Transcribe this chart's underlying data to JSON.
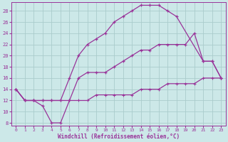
{
  "xlabel": "Windchill (Refroidissement éolien,°C)",
  "bg_color": "#cce8e8",
  "line_color": "#993399",
  "grid_color": "#aacccc",
  "xlim": [
    -0.5,
    23.5
  ],
  "ylim": [
    7.5,
    29.5
  ],
  "xticks": [
    0,
    1,
    2,
    3,
    4,
    5,
    6,
    7,
    8,
    9,
    10,
    11,
    12,
    13,
    14,
    15,
    16,
    17,
    18,
    19,
    20,
    21,
    22,
    23
  ],
  "yticks": [
    8,
    10,
    12,
    14,
    16,
    18,
    20,
    22,
    24,
    26,
    28
  ],
  "curve_top_x": [
    0,
    1,
    2,
    3,
    4,
    5,
    6,
    7,
    8,
    9,
    10,
    11,
    12,
    13,
    14,
    15,
    16,
    17,
    18,
    21,
    22,
    23
  ],
  "curve_top_y": [
    14,
    12,
    12,
    12,
    12,
    12,
    16,
    20,
    22,
    23,
    24,
    26,
    27,
    28,
    29,
    29,
    29,
    28,
    27,
    19,
    19,
    16
  ],
  "curve_mid_x": [
    0,
    1,
    2,
    3,
    4,
    5,
    6,
    7,
    8,
    9,
    10,
    11,
    12,
    13,
    14,
    15,
    16,
    17,
    18,
    19,
    20,
    21,
    22,
    23
  ],
  "curve_mid_y": [
    14,
    12,
    12,
    11,
    8,
    8,
    12,
    16,
    17,
    17,
    17,
    18,
    19,
    20,
    21,
    21,
    22,
    22,
    22,
    22,
    24,
    19,
    19,
    16
  ],
  "curve_bot_x": [
    0,
    1,
    2,
    3,
    4,
    5,
    6,
    7,
    8,
    9,
    10,
    11,
    12,
    13,
    14,
    15,
    16,
    17,
    18,
    19,
    20,
    21,
    22,
    23
  ],
  "curve_bot_y": [
    14,
    12,
    12,
    12,
    12,
    12,
    12,
    12,
    12,
    13,
    13,
    13,
    13,
    13,
    14,
    14,
    14,
    15,
    15,
    15,
    15,
    16,
    16,
    16
  ]
}
